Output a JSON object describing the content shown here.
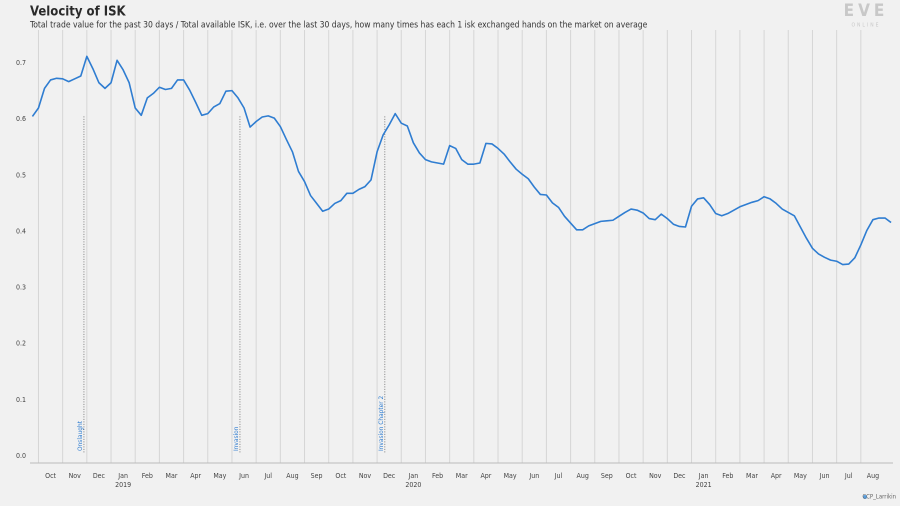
{
  "chart_data": {
    "type": "line",
    "title": "Velocity of ISK",
    "subtitle": "Total trade value for the past 30 days / Total available ISK, i.e. over the last 30 days, how many times has each 1 isk exchanged hands on the market on average",
    "logo": {
      "main": "EVE",
      "sub": "ONLINE"
    },
    "credit": "CCP_Larrikin",
    "color": "#2f7dd1",
    "grid": true,
    "xlim": [
      -3.35,
      32.33
    ],
    "ylim": [
      -0.0125,
      0.759
    ],
    "yticks": [
      {
        "value": 0,
        "label": "0.0"
      },
      0.1,
      0.2,
      0.3,
      0.4,
      0.5,
      0.6,
      0.7
    ],
    "xticks": [
      {
        "value": -3,
        "label": "Oct"
      },
      {
        "value": -2,
        "label": "Nov"
      },
      {
        "value": -1,
        "label": "Dec"
      },
      {
        "value": 0,
        "label": "Jan"
      },
      {
        "value": 1,
        "label": "Feb"
      },
      {
        "value": 2,
        "label": "Mar"
      },
      {
        "value": 3,
        "label": "Apr"
      },
      {
        "value": 4,
        "label": "May"
      },
      {
        "value": 5,
        "label": "Jun"
      },
      {
        "value": 6,
        "label": "Jul"
      },
      {
        "value": 7,
        "label": "Aug"
      },
      {
        "value": 8,
        "label": "Sep"
      },
      {
        "value": 9,
        "label": "Oct"
      },
      {
        "value": 10,
        "label": "Nov"
      },
      {
        "value": 11,
        "label": "Dec"
      },
      {
        "value": 12,
        "label": "Jan"
      },
      {
        "value": 13,
        "label": "Feb"
      },
      {
        "value": 14,
        "label": "Mar"
      },
      {
        "value": 15,
        "label": "Apr"
      },
      {
        "value": 16,
        "label": "May"
      },
      {
        "value": 17,
        "label": "Jun"
      },
      {
        "value": 18,
        "label": "Jul"
      },
      {
        "value": 19,
        "label": "Aug"
      },
      {
        "value": 20,
        "label": "Sep"
      },
      {
        "value": 21,
        "label": "Oct"
      },
      {
        "value": 22,
        "label": "Nov"
      },
      {
        "value": 23,
        "label": "Dec"
      },
      {
        "value": 24,
        "label": "Jan"
      },
      {
        "value": 25,
        "label": "Feb"
      },
      {
        "value": 26,
        "label": "Mar"
      },
      {
        "value": 27,
        "label": "Apr"
      },
      {
        "value": 28,
        "label": "May"
      },
      {
        "value": 29,
        "label": "Jun"
      },
      {
        "value": 30,
        "label": "Jul"
      },
      {
        "value": 31,
        "label": "Aug"
      }
    ],
    "year_labels": [
      {
        "value": 0,
        "label": "2019"
      },
      {
        "value": 12,
        "label": "2020"
      },
      {
        "value": 24,
        "label": "2021"
      }
    ],
    "annotations": [
      {
        "x": -1.12,
        "label": "Onslaught"
      },
      {
        "x": 5.33,
        "label": "Invasion"
      },
      {
        "x": 11.32,
        "label": "Invasion Chapter 2"
      }
    ],
    "x": [
      -3.25,
      -3,
      -2.75,
      -2.5,
      -2.25,
      -2,
      -1.75,
      -1.5,
      -1.25,
      -1,
      -0.75,
      -0.5,
      -0.25,
      0,
      0.25,
      0.5,
      0.75,
      1,
      1.25,
      1.5,
      1.75,
      2,
      2.25,
      2.5,
      2.75,
      3,
      3.25,
      3.5,
      3.75,
      4,
      4.25,
      4.5,
      4.75,
      5,
      5.25,
      5.5,
      5.75,
      6,
      6.25,
      6.5,
      6.75,
      7,
      7.25,
      7.5,
      7.75,
      8,
      8.25,
      8.5,
      8.75,
      9,
      9.25,
      9.5,
      9.75,
      10,
      10.25,
      10.5,
      10.75,
      11,
      11.25,
      11.5,
      11.75,
      12,
      12.25,
      12.5,
      12.75,
      13,
      13.25,
      13.5,
      13.75,
      14,
      14.25,
      14.5,
      14.75,
      15,
      15.25,
      15.5,
      15.75,
      16,
      16.25,
      16.5,
      16.75,
      17,
      17.25,
      17.5,
      17.75,
      18,
      18.25,
      18.5,
      18.75,
      19,
      19.25,
      19.5,
      19.75,
      20,
      20.25,
      20.5,
      20.75,
      21,
      21.25,
      21.5,
      21.75,
      22,
      22.25,
      22.5,
      22.75,
      23,
      23.25,
      23.5,
      23.75,
      24,
      24.25,
      24.5,
      24.75,
      25,
      25.25,
      25.5,
      25.75,
      26,
      26.25,
      26.5,
      26.75,
      27,
      27.25,
      27.5,
      27.75,
      28,
      28.25,
      28.5,
      28.75,
      29,
      29.25,
      29.5,
      29.75,
      30,
      30.25,
      30.5,
      30.75,
      31,
      31.25,
      31.5,
      31.75,
      32,
      32.25
    ],
    "values": [
      0.605,
      0.62,
      0.655,
      0.67,
      0.673,
      0.672,
      0.667,
      0.672,
      0.677,
      0.712,
      0.69,
      0.665,
      0.655,
      0.665,
      0.705,
      0.688,
      0.665,
      0.62,
      0.607,
      0.638,
      0.646,
      0.657,
      0.653,
      0.655,
      0.67,
      0.67,
      0.652,
      0.63,
      0.607,
      0.61,
      0.622,
      0.628,
      0.65,
      0.651,
      0.638,
      0.62,
      0.586,
      0.596,
      0.604,
      0.606,
      0.602,
      0.587,
      0.564,
      0.542,
      0.507,
      0.489,
      0.464,
      0.45,
      0.436,
      0.44,
      0.45,
      0.455,
      0.468,
      0.468,
      0.475,
      0.48,
      0.492,
      0.542,
      0.572,
      0.59,
      0.61,
      0.593,
      0.588,
      0.558,
      0.54,
      0.528,
      0.524,
      0.522,
      0.52,
      0.553,
      0.548,
      0.528,
      0.52,
      0.52,
      0.522,
      0.557,
      0.556,
      0.548,
      0.538,
      0.524,
      0.511,
      0.502,
      0.494,
      0.479,
      0.466,
      0.465,
      0.451,
      0.443,
      0.427,
      0.415,
      0.403,
      0.403,
      0.41,
      0.414,
      0.418,
      0.419,
      0.42,
      0.427,
      0.434,
      0.44,
      0.438,
      0.433,
      0.423,
      0.421,
      0.431,
      0.423,
      0.413,
      0.409,
      0.408,
      0.445,
      0.458,
      0.46,
      0.448,
      0.432,
      0.428,
      0.432,
      0.438,
      0.444,
      0.448,
      0.452,
      0.455,
      0.462,
      0.458,
      0.45,
      0.44,
      0.434,
      0.428,
      0.408,
      0.388,
      0.37,
      0.36,
      0.354,
      0.349,
      0.347,
      0.341,
      0.342,
      0.353,
      0.376,
      0.402,
      0.421,
      0.424,
      0.424,
      0.416
    ]
  }
}
